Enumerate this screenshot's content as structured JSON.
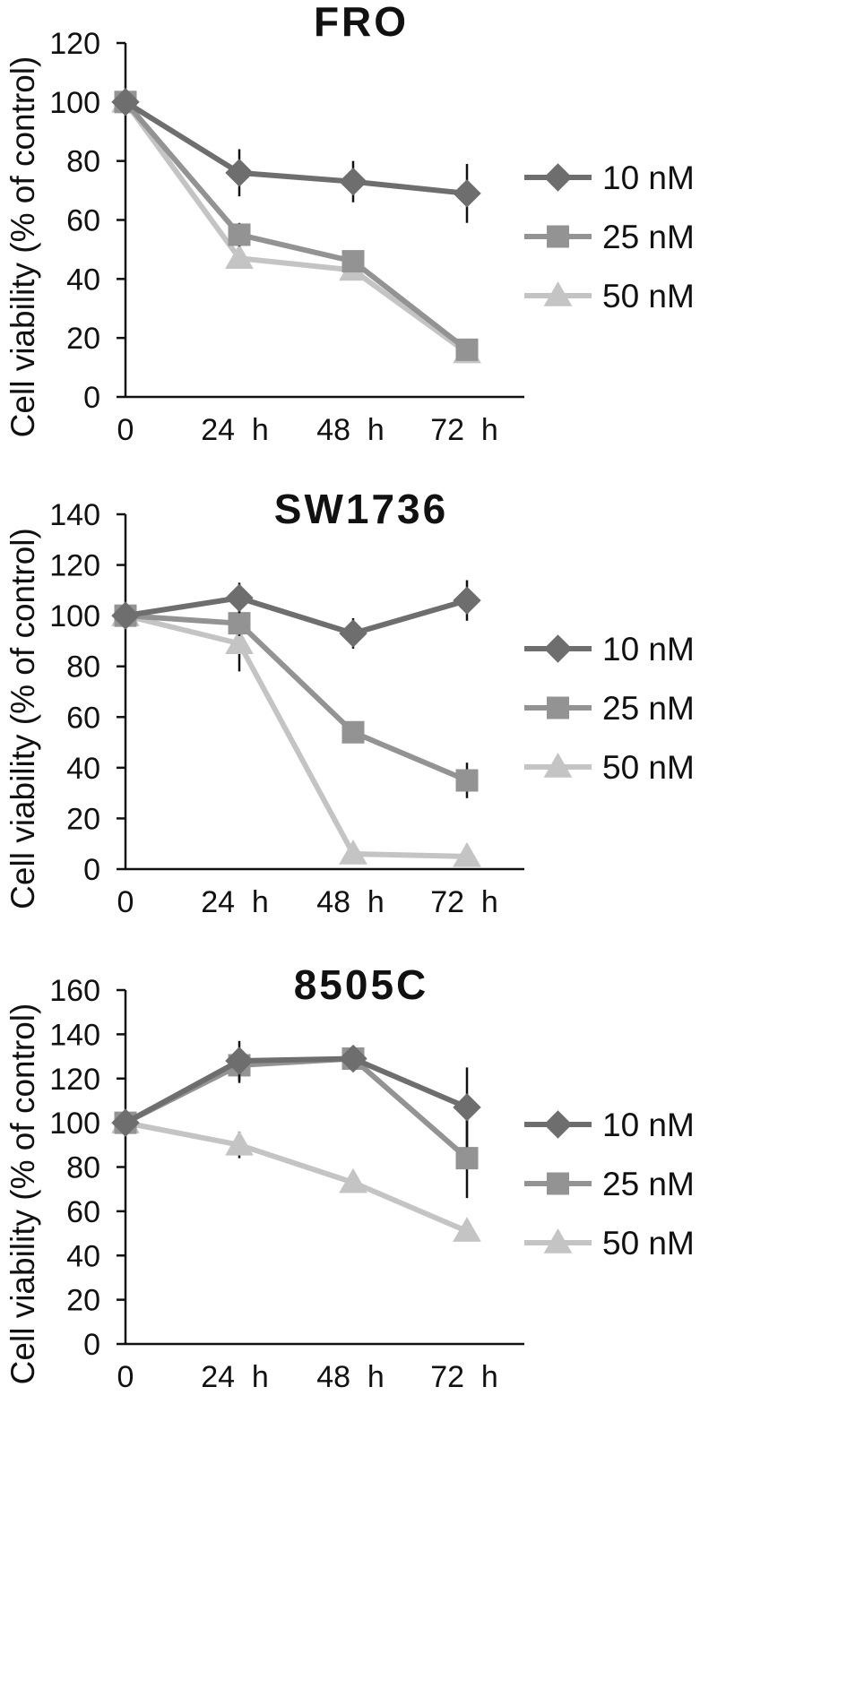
{
  "chart_data": [
    {
      "type": "line",
      "title": "FRO",
      "ylabel": "Cell viability (% of control)",
      "xlabel": "",
      "categories": [
        "0",
        "24  h",
        "48  h",
        "72  h"
      ],
      "ylim": [
        0,
        120
      ],
      "yticks": [
        0,
        20,
        40,
        60,
        80,
        100,
        120
      ],
      "legend_position": "right",
      "series": [
        {
          "name": "10 nM",
          "values": [
            100,
            76,
            73,
            69
          ],
          "errors": [
            0,
            8,
            7,
            10
          ],
          "marker": "diamond",
          "color": "#6e6e6e"
        },
        {
          "name": "25 nM",
          "values": [
            100,
            55,
            46,
            16
          ],
          "errors": [
            0,
            4,
            3,
            2
          ],
          "marker": "square",
          "color": "#939393"
        },
        {
          "name": "50 nM",
          "values": [
            100,
            47,
            43,
            15
          ],
          "errors": [
            0,
            3,
            3,
            2
          ],
          "marker": "triangle",
          "color": "#c4c4c4"
        }
      ]
    },
    {
      "type": "line",
      "title": "SW1736",
      "ylabel": "Cell viability (% of control)",
      "xlabel": "",
      "categories": [
        "0",
        "24  h",
        "48  h",
        "72  h"
      ],
      "ylim": [
        0,
        140
      ],
      "yticks": [
        0,
        20,
        40,
        60,
        80,
        100,
        120,
        140
      ],
      "legend_position": "right",
      "series": [
        {
          "name": "10 nM",
          "values": [
            100,
            107,
            93,
            106
          ],
          "errors": [
            0,
            6,
            6,
            8
          ],
          "marker": "diamond",
          "color": "#6e6e6e"
        },
        {
          "name": "25 nM",
          "values": [
            100,
            97,
            54,
            35
          ],
          "errors": [
            0,
            5,
            4,
            7
          ],
          "marker": "square",
          "color": "#939393"
        },
        {
          "name": "50 nM",
          "values": [
            100,
            89,
            6,
            5
          ],
          "errors": [
            0,
            11,
            1,
            1
          ],
          "marker": "triangle",
          "color": "#c4c4c4"
        }
      ]
    },
    {
      "type": "line",
      "title": "8505C",
      "ylabel": "Cell viability (% of control)",
      "xlabel": "",
      "categories": [
        "0",
        "24  h",
        "48  h",
        "72  h"
      ],
      "ylim": [
        0,
        160
      ],
      "yticks": [
        0,
        20,
        40,
        60,
        80,
        100,
        120,
        140,
        160
      ],
      "legend_position": "right",
      "series": [
        {
          "name": "10 nM",
          "values": [
            100,
            128,
            129,
            107
          ],
          "errors": [
            0,
            9,
            3,
            18
          ],
          "marker": "diamond",
          "color": "#6e6e6e"
        },
        {
          "name": "25 nM",
          "values": [
            100,
            126,
            129,
            84
          ],
          "errors": [
            0,
            8,
            3,
            18
          ],
          "marker": "square",
          "color": "#939393"
        },
        {
          "name": "50 nM",
          "values": [
            100,
            90,
            73,
            51
          ],
          "errors": [
            0,
            6,
            3,
            3
          ],
          "marker": "triangle",
          "color": "#c4c4c4"
        }
      ]
    }
  ]
}
